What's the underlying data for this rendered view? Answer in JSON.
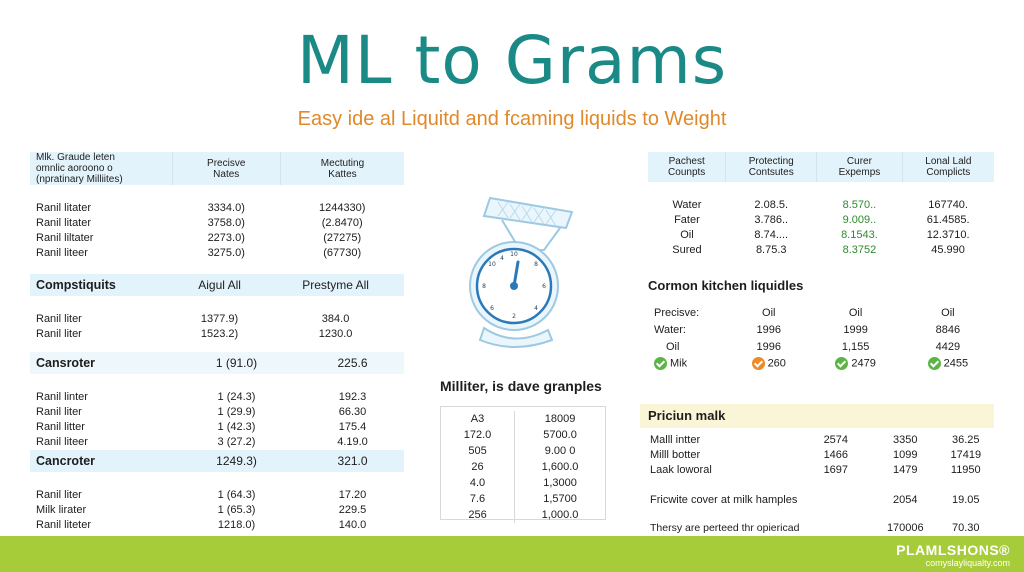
{
  "title": "ML to Grams",
  "subtitle": "Easy ide al Liquitd and fcaming liquids to Weight",
  "table_top_left": {
    "headers": [
      "Mlk. Graude leten\nomnlic aoroono o\n(npratinary Milliites)",
      "Precisve\nNates",
      "Mectuting\nKattes"
    ],
    "rows": [
      [
        "Ranil litater",
        "3334.0)",
        "1244330)"
      ],
      [
        "Ranil litater",
        "3758.0)",
        "(2.8470)"
      ],
      [
        "Ranil liltater",
        "2273.0)",
        "(27275)"
      ],
      [
        "Ranil liteer",
        "3275.0)",
        "(67730)"
      ]
    ]
  },
  "section_compstiquits": {
    "headers": [
      "Compstiquits",
      "Aigul All",
      "Prestyme All"
    ],
    "rows": [
      [
        "Ranil liter",
        "1377.9)",
        "384.0"
      ],
      [
        "Ranil liter",
        "1523.2)",
        "1230.0"
      ]
    ]
  },
  "section_cansroter": {
    "headers": [
      "Cansroter",
      "1 (91.0)",
      "225.6"
    ],
    "rows": [
      [
        "Ranil linter",
        "1 (24.3)",
        "192.3"
      ],
      [
        "Ranil liter",
        "1 (29.9)",
        "66.30"
      ],
      [
        "Ranil litter",
        "1 (42.3)",
        "175.4"
      ],
      [
        "Ranil liteer",
        "3 (27.2)",
        "4.19.0"
      ]
    ]
  },
  "section_cancroter": {
    "headers": [
      "Cancroter",
      "1249.3)",
      "321.0"
    ],
    "rows": [
      [
        "Ranil liter",
        "1 (64.3)",
        "17.20"
      ],
      [
        "Milk lirater",
        "1 (65.3)",
        "229.5"
      ],
      [
        "Ranil liteter",
        "1218.0)",
        "140.0"
      ]
    ]
  },
  "table_top_right": {
    "headers": [
      "Pachest\nCounpts",
      "Protecting\nContsutes",
      "Curer\nExpemps",
      "Lonal Lald\nComplicts"
    ],
    "rows": [
      [
        "Water",
        "2.08.5.",
        "8.570..",
        "167740."
      ],
      [
        "Fater",
        "3.786..",
        "9.009..",
        "61.4585."
      ],
      [
        "Oil",
        "8.74....",
        "8.1543.",
        "12.3710."
      ],
      [
        "Sured",
        "8.75.3",
        "8.3752",
        "45.990"
      ]
    ]
  },
  "scale": {
    "dial_labels": [
      "10",
      "8",
      "6",
      "4",
      "2",
      "10",
      "8",
      "6",
      "4"
    ]
  },
  "kitchen": {
    "title": "Cormon kitchen liquidles",
    "rows": [
      {
        "label": "Precisve:",
        "c1": "Oil",
        "c2": "Oil",
        "c3": "Oil"
      },
      {
        "label": "Water:",
        "c1": "1996",
        "c2": "1999",
        "c3": "8846"
      },
      {
        "label": "Oil",
        "c1": "1996",
        "c2": "1,155",
        "c3": "4429"
      },
      {
        "label": "Mik",
        "c1": "260",
        "c2": "2479",
        "c3": "2455"
      }
    ],
    "check_colors": [
      "#f08a22",
      "#5bb544",
      "#5bb544"
    ]
  },
  "milliter": {
    "title": "Milliter, is dave granples",
    "rows": [
      [
        "A3",
        "18009"
      ],
      [
        "172.0",
        "5700.0"
      ],
      [
        "505",
        "9.00 0"
      ],
      [
        "26",
        "1,600.0"
      ],
      [
        "4.0",
        "1,3000"
      ],
      [
        "7.6",
        "1,5700"
      ],
      [
        "256",
        "1,000.0"
      ]
    ]
  },
  "premium": {
    "title": "Priciun malk",
    "rows": [
      [
        "Malll intter",
        "2574",
        "3350",
        "36.25"
      ],
      [
        "Milll botter",
        "1466",
        "1099",
        "17419"
      ],
      [
        "Laak loworal",
        "1697",
        "1479",
        "11950"
      ]
    ],
    "wide_row": [
      "Fricwite cover at milk hamples",
      "2054",
      "19.05"
    ],
    "note_row": [
      "Thersy are perteed thr opiericad\ncomplice and a the ligtate fornace.",
      "170006",
      "70.30"
    ]
  },
  "footer": {
    "brand": "PLAMLSHONS®",
    "url": "comyslayliqualty.com"
  },
  "colors": {
    "title": "#1b8a86",
    "subtitle": "#e0892a",
    "header_bg": "#e3f3fb",
    "premium_bg": "#fbf5d8",
    "footer_bg": "#a7cc3a",
    "green_text": "#2e8b2e"
  }
}
